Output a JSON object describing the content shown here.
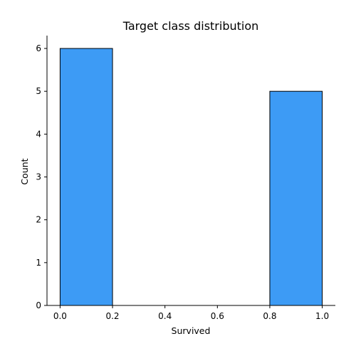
{
  "chart_data": {
    "type": "bar",
    "title": "Target class distribution",
    "xlabel": "Survived",
    "ylabel": "Count",
    "bins": [
      {
        "x0": 0.0,
        "x1": 0.2,
        "value": 6
      },
      {
        "x0": 0.2,
        "x1": 0.4,
        "value": 0
      },
      {
        "x0": 0.4,
        "x1": 0.6,
        "value": 0
      },
      {
        "x0": 0.6,
        "x1": 0.8,
        "value": 0
      },
      {
        "x0": 0.8,
        "x1": 1.0,
        "value": 5
      }
    ],
    "xlim": [
      -0.05,
      1.05
    ],
    "ylim": [
      0,
      6.3
    ],
    "x_ticks": [
      "0.0",
      "0.2",
      "0.4",
      "0.6",
      "0.8",
      "1.0"
    ],
    "y_ticks": [
      "0",
      "1",
      "2",
      "3",
      "4",
      "5",
      "6"
    ],
    "bar_color": "#3d9bf5",
    "edge_color": "#000000",
    "grid": false
  }
}
